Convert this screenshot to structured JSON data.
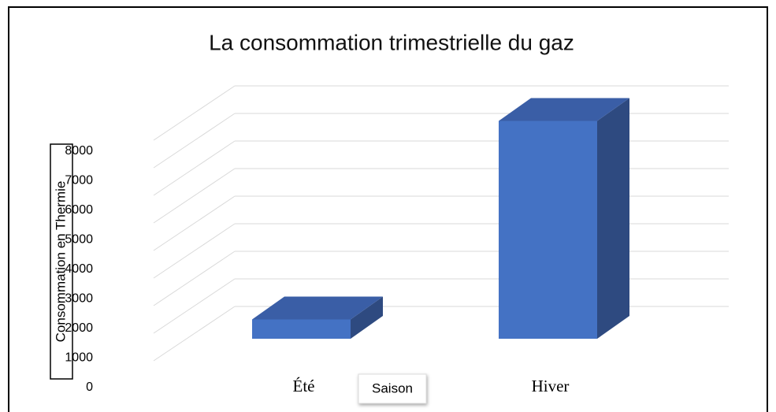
{
  "chart_data": {
    "type": "bar3d",
    "title": "La consommation trimestrielle du gaz",
    "y_label": "Consommation en Thermie",
    "x_label": "Saison",
    "categories": [
      "Été",
      "Hiver"
    ],
    "values": [
      700,
      7900
    ],
    "color": "#4472c4",
    "ylim": [
      0,
      9000
    ],
    "yticks": [
      0,
      1000,
      2000,
      3000,
      4000,
      5000,
      6000,
      7000,
      8000
    ],
    "grid": true
  }
}
